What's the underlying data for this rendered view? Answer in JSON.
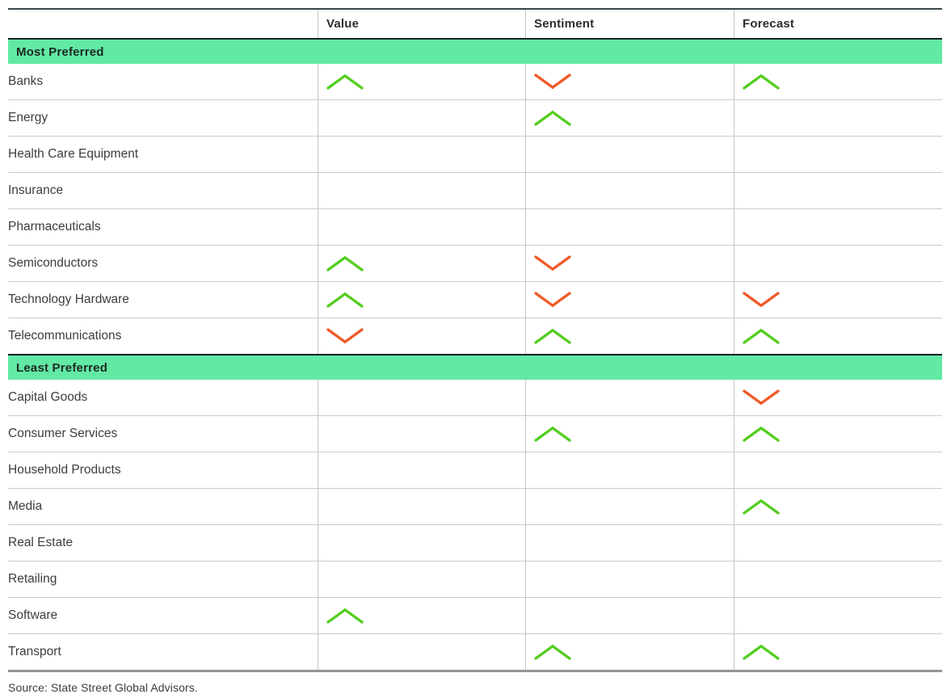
{
  "chart_data": {
    "type": "table",
    "title": "",
    "columns": [
      "",
      "Value",
      "Sentiment",
      "Forecast"
    ],
    "legend": {
      "up": "positive (green up chevron)",
      "down": "negative (orange down chevron)",
      "blank": "neutral / no signal"
    },
    "sections": [
      {
        "label": "Most Preferred",
        "rows": [
          {
            "label": "Banks",
            "value": "up",
            "sentiment": "down",
            "forecast": "up"
          },
          {
            "label": "Energy",
            "value": "",
            "sentiment": "up",
            "forecast": ""
          },
          {
            "label": "Health Care Equipment",
            "value": "",
            "sentiment": "",
            "forecast": ""
          },
          {
            "label": "Insurance",
            "value": "",
            "sentiment": "",
            "forecast": ""
          },
          {
            "label": "Pharmaceuticals",
            "value": "",
            "sentiment": "",
            "forecast": ""
          },
          {
            "label": "Semiconductors",
            "value": "up",
            "sentiment": "down",
            "forecast": ""
          },
          {
            "label": "Technology Hardware",
            "value": "up",
            "sentiment": "down",
            "forecast": "down"
          },
          {
            "label": "Telecommunications",
            "value": "down",
            "sentiment": "up",
            "forecast": "up"
          }
        ]
      },
      {
        "label": "Least Preferred",
        "rows": [
          {
            "label": "Capital Goods",
            "value": "",
            "sentiment": "",
            "forecast": "down"
          },
          {
            "label": "Consumer Services",
            "value": "",
            "sentiment": "up",
            "forecast": "up"
          },
          {
            "label": "Household Products",
            "value": "",
            "sentiment": "",
            "forecast": ""
          },
          {
            "label": "Media",
            "value": "",
            "sentiment": "",
            "forecast": "up"
          },
          {
            "label": "Real Estate",
            "value": "",
            "sentiment": "",
            "forecast": ""
          },
          {
            "label": "Retailing",
            "value": "",
            "sentiment": "",
            "forecast": ""
          },
          {
            "label": "Software",
            "value": "up",
            "sentiment": "",
            "forecast": ""
          },
          {
            "label": "Transport",
            "value": "",
            "sentiment": "up",
            "forecast": "up"
          }
        ]
      }
    ],
    "source": "Source: State Street Global Advisors.",
    "colors": {
      "up_chevron": "#54cd1f",
      "down_chevron": "#f05a28",
      "section_band": "#62e9a4",
      "band_top_border": "#182028",
      "table_top_border": "#3c464d",
      "table_bottom_border": "#8f9598",
      "row_divider": "#c9cbcb",
      "text": "#3d3d3d"
    }
  }
}
